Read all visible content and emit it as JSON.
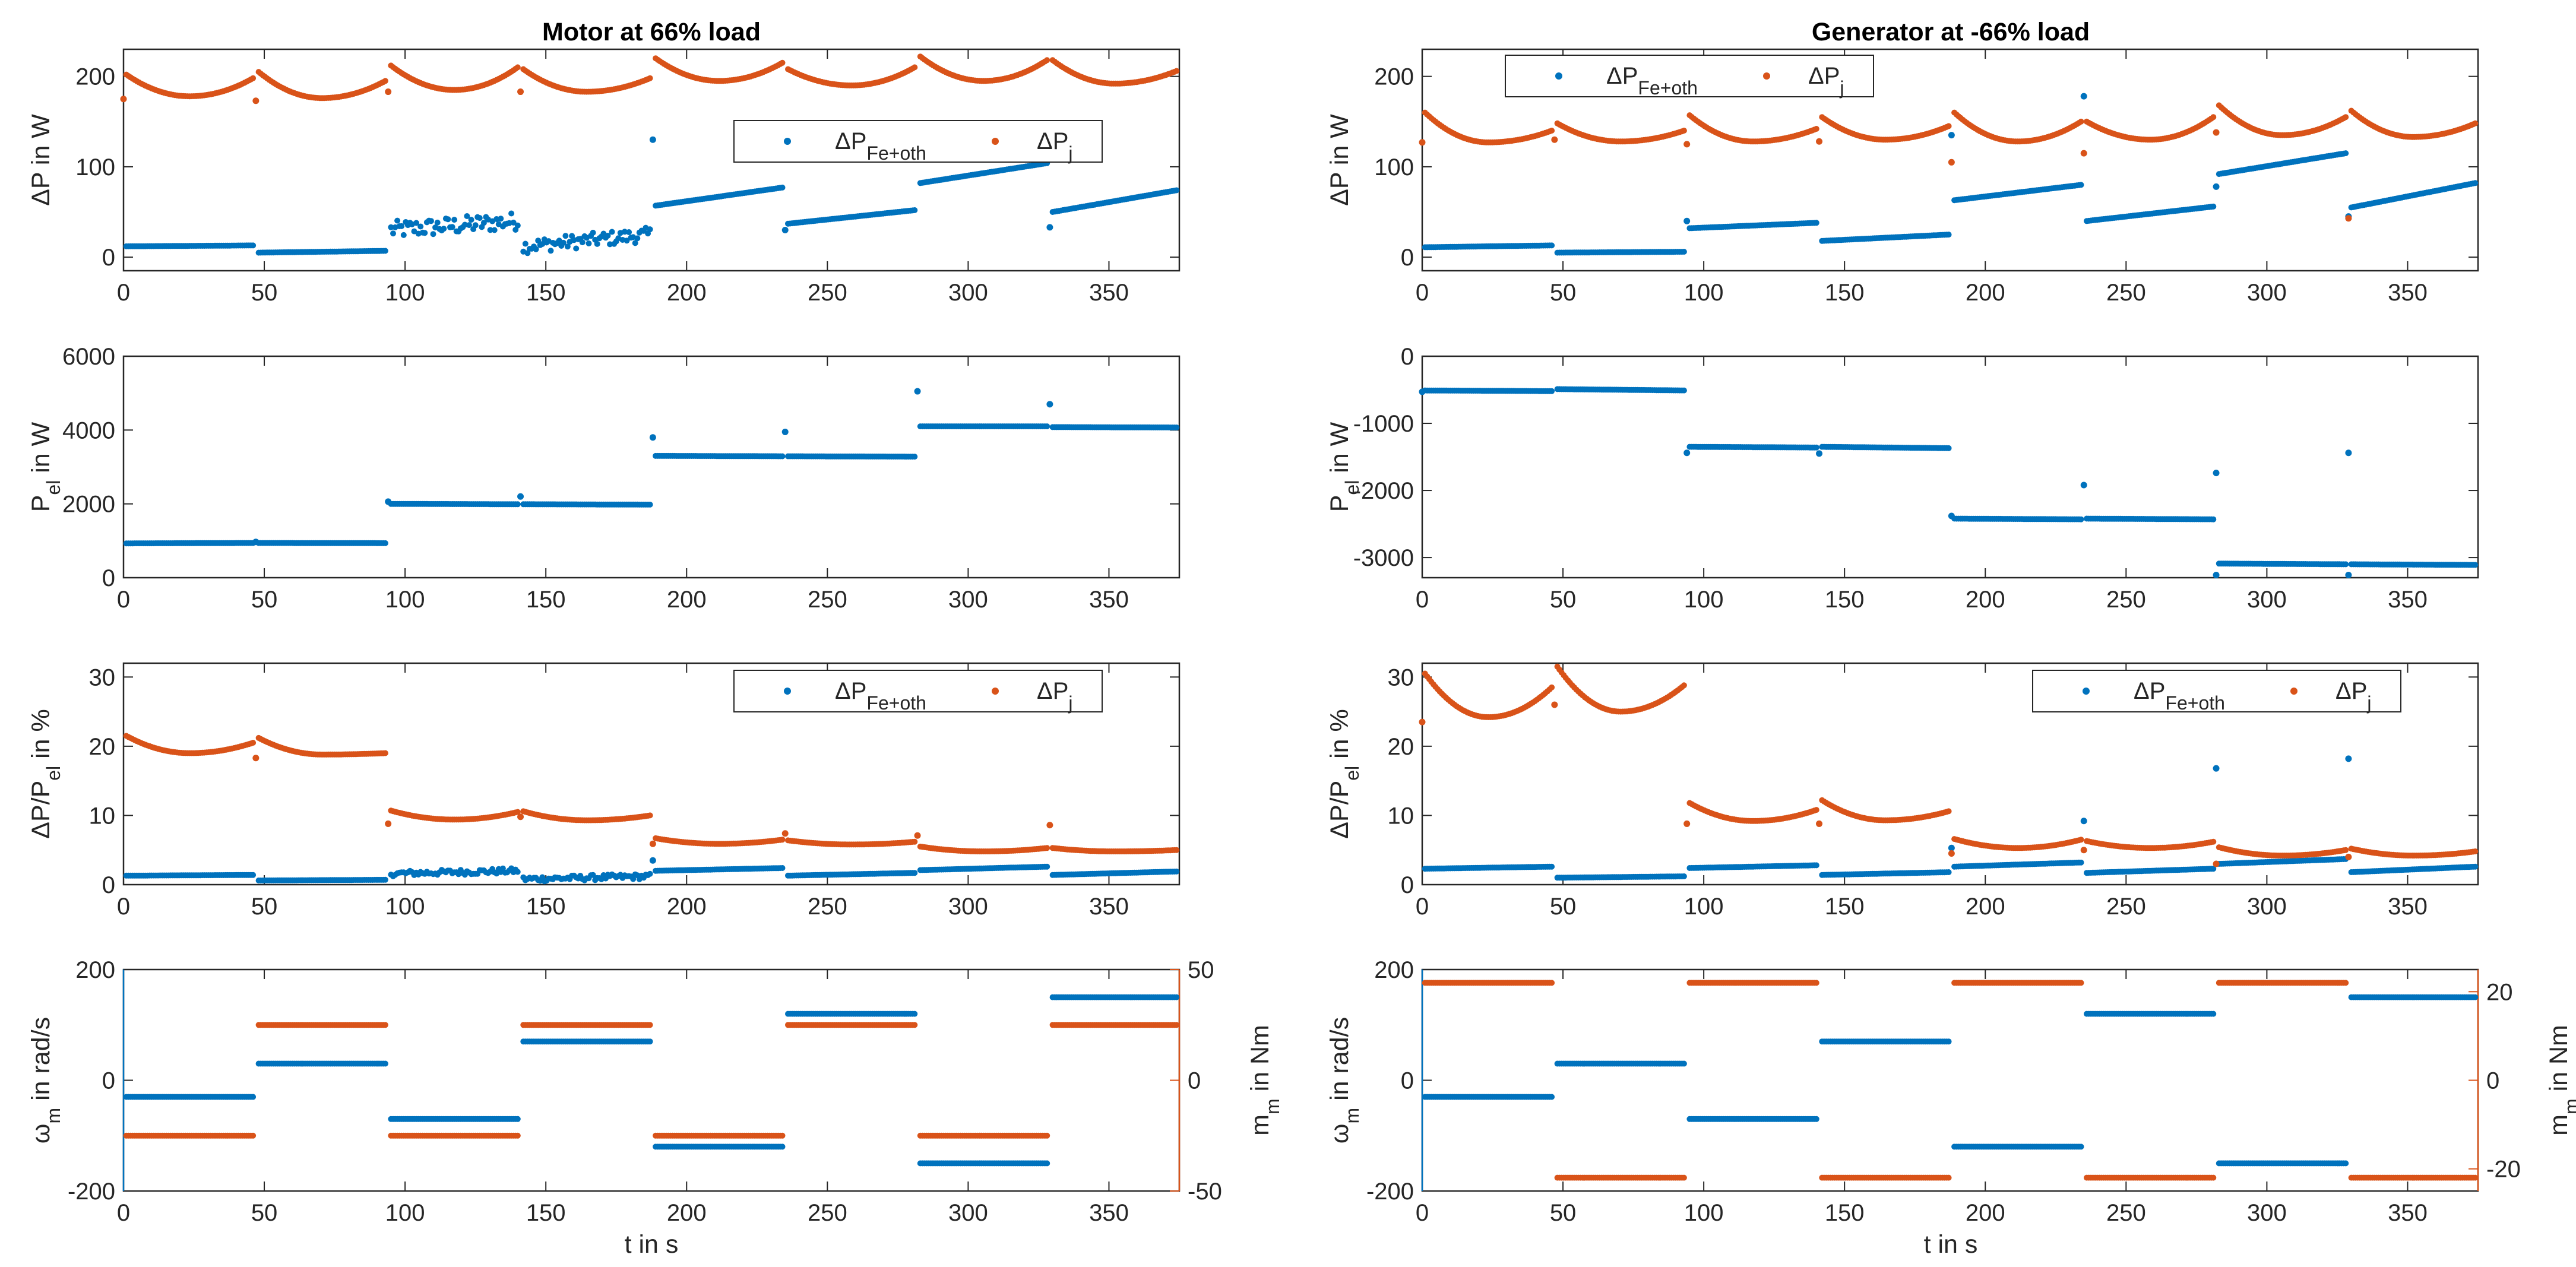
{
  "colors": {
    "blue": "#0072BD",
    "orange": "#D95319",
    "axis": "#262626"
  },
  "columns": [
    {
      "title": "Motor at 66% load",
      "load": "motor",
      "xlabel": "t in s"
    },
    {
      "title": "Generator at -66% load",
      "load": "generator",
      "xlabel": "t in s"
    }
  ],
  "symbols": {
    "delta": "Δ",
    "omega": "ω",
    "sub_m": "m",
    "sub_el": "el",
    "sub_j": "j",
    "sub_fe": "Fe+oth"
  },
  "chart_data": [
    {
      "id": "motor-losses",
      "type": "scatter",
      "title": "Motor at 66% load",
      "xlabel": "",
      "ylabel": "ΔP in W",
      "xlim": [
        0,
        375
      ],
      "ylim": [
        -15,
        230
      ],
      "yticks": [
        0,
        100,
        200
      ],
      "xticks": [
        0,
        50,
        100,
        150,
        200,
        250,
        300,
        350
      ],
      "legend": {
        "placement": "top-right",
        "entries": [
          "ΔP_Fe+oth",
          "ΔP_j"
        ]
      },
      "segment_breaks": [
        0,
        47,
        94,
        141,
        188,
        235,
        282,
        329,
        375
      ],
      "series": [
        {
          "name": "ΔP_Fe+oth",
          "color": "blue",
          "segments": [
            [
              12,
              13
            ],
            [
              5,
              7
            ],
            [
              30,
              40
            ],
            [
              12,
              25
            ],
            [
              57,
              77
            ],
            [
              37,
              52
            ],
            [
              82,
              104
            ],
            [
              50,
              74
            ]
          ],
          "scatter_amp": [
            0,
            0,
            10,
            8,
            0,
            0,
            0,
            0
          ],
          "spikes": [
            [
              188,
              130
            ],
            [
              235,
              30
            ],
            [
              329,
              33
            ]
          ]
        },
        {
          "name": "ΔP_j",
          "color": "orange",
          "segments": [
            [
              202,
              178,
              198
            ],
            [
              205,
              176,
              195
            ],
            [
              212,
              185,
              210
            ],
            [
              208,
              183,
              198
            ],
            [
              220,
              195,
              215
            ],
            [
              208,
              190,
              210
            ],
            [
              222,
              195,
              218
            ],
            [
              218,
              192,
              206
            ]
          ],
          "spikes": [
            [
              0,
              175
            ],
            [
              47,
              173
            ],
            [
              94,
              183
            ],
            [
              141,
              183
            ]
          ]
        }
      ]
    },
    {
      "id": "motor-pel",
      "type": "scatter",
      "xlabel": "",
      "ylabel": "P_el in W",
      "xlim": [
        0,
        375
      ],
      "ylim": [
        0,
        6000
      ],
      "yticks": [
        0,
        2000,
        4000,
        6000
      ],
      "xticks": [
        0,
        50,
        100,
        150,
        200,
        250,
        300,
        350
      ],
      "series": [
        {
          "name": "P_el",
          "color": "blue",
          "segments": [
            [
              930,
              940
            ],
            [
              940,
              935
            ],
            [
              2000,
              1990
            ],
            [
              1990,
              1980
            ],
            [
              3300,
              3290
            ],
            [
              3290,
              3280
            ],
            [
              4100,
              4100
            ],
            [
              4080,
              4070
            ]
          ],
          "spikes": [
            [
              47,
              970
            ],
            [
              94,
              2060
            ],
            [
              141,
              2200
            ],
            [
              188,
              3800
            ],
            [
              235,
              3950
            ],
            [
              282,
              5050
            ],
            [
              329,
              4700
            ]
          ]
        }
      ]
    },
    {
      "id": "motor-ratio",
      "type": "scatter",
      "xlabel": "",
      "ylabel": "ΔP/P_el in %",
      "xlim": [
        0,
        375
      ],
      "ylim": [
        0,
        32
      ],
      "yticks": [
        0,
        10,
        20,
        30
      ],
      "xticks": [
        0,
        50,
        100,
        150,
        200,
        250,
        300,
        350
      ],
      "legend": {
        "placement": "top-right",
        "entries": [
          "ΔP_Fe+oth",
          "ΔP_j"
        ]
      },
      "series": [
        {
          "name": "ΔP_Fe+oth",
          "color": "blue",
          "segments": [
            [
              1.3,
              1.4
            ],
            [
              0.6,
              0.7
            ],
            [
              1.6,
              2.0
            ],
            [
              0.8,
              1.2
            ],
            [
              2.0,
              2.4
            ],
            [
              1.3,
              1.7
            ],
            [
              2.1,
              2.6
            ],
            [
              1.4,
              1.9
            ]
          ],
          "scatter_amp": [
            0,
            0,
            0.4,
            0.4,
            0,
            0,
            0,
            0
          ],
          "spikes": [
            [
              188,
              3.5
            ]
          ]
        },
        {
          "name": "ΔP_j",
          "color": "orange",
          "segments": [
            [
              21.5,
              19.0,
              20.5
            ],
            [
              21.2,
              18.8,
              19.0
            ],
            [
              10.7,
              9.4,
              10.5
            ],
            [
              10.6,
              9.3,
              10.0
            ],
            [
              6.7,
              5.9,
              6.5
            ],
            [
              6.4,
              5.8,
              6.2
            ],
            [
              5.5,
              4.8,
              5.3
            ],
            [
              5.3,
              4.8,
              5.0
            ]
          ],
          "spikes": [
            [
              47,
              18.3
            ],
            [
              94,
              8.8
            ],
            [
              141,
              9.8
            ],
            [
              188,
              5.9
            ],
            [
              235,
              7.4
            ],
            [
              282,
              7.1
            ],
            [
              329,
              8.6
            ]
          ]
        }
      ]
    },
    {
      "id": "motor-speed-torque",
      "type": "scatter",
      "xlabel": "t in s",
      "ylabel": "ω_m in rad/s",
      "ylabel_right": "m_m in Nm",
      "xlim": [
        0,
        375
      ],
      "ylim": [
        -200,
        200
      ],
      "yticks": [
        -200,
        0,
        200
      ],
      "ylim_right": [
        -50,
        50
      ],
      "yticks_right": [
        -50,
        0,
        50
      ],
      "xticks": [
        0,
        50,
        100,
        150,
        200,
        250,
        300,
        350
      ],
      "series": [
        {
          "name": "ω_m",
          "color": "blue",
          "axis": "left",
          "values": [
            -30,
            30,
            -70,
            70,
            -120,
            120,
            -150,
            150
          ]
        },
        {
          "name": "m_m",
          "color": "orange",
          "axis": "right",
          "values": [
            -25,
            25,
            -25,
            25,
            -25,
            25,
            -25,
            25
          ]
        }
      ]
    },
    {
      "id": "generator-losses",
      "type": "scatter",
      "title": "Generator at -66% load",
      "xlabel": "",
      "ylabel": "ΔP in W",
      "xlim": [
        0,
        375
      ],
      "ylim": [
        -15,
        230
      ],
      "yticks": [
        0,
        100,
        200
      ],
      "xticks": [
        0,
        50,
        100,
        150,
        200,
        250,
        300,
        350
      ],
      "legend": {
        "placement": "top-left",
        "entries": [
          "ΔP_Fe+oth",
          "ΔP_j"
        ]
      },
      "series": [
        {
          "name": "ΔP_Fe+oth",
          "color": "blue",
          "segments": [
            [
              11,
              13
            ],
            [
              5,
              6
            ],
            [
              32,
              38
            ],
            [
              18,
              25
            ],
            [
              63,
              80
            ],
            [
              40,
              56
            ],
            [
              92,
              115
            ],
            [
              55,
              82
            ]
          ],
          "spikes": [
            [
              94,
              40
            ],
            [
              188,
              135
            ],
            [
              235,
              178
            ],
            [
              282,
              78
            ],
            [
              329,
              45
            ]
          ]
        },
        {
          "name": "ΔP_j",
          "color": "orange",
          "segments": [
            [
              160,
              127,
              140
            ],
            [
              148,
              128,
              140
            ],
            [
              157,
              128,
              142
            ],
            [
              155,
              130,
              145
            ],
            [
              160,
              128,
              150
            ],
            [
              150,
              130,
              155
            ],
            [
              168,
              135,
              155
            ],
            [
              162,
              133,
              148
            ]
          ],
          "spikes": [
            [
              0,
              127
            ],
            [
              47,
              130
            ],
            [
              94,
              125
            ],
            [
              141,
              128
            ],
            [
              188,
              105
            ],
            [
              235,
              115
            ],
            [
              282,
              138
            ],
            [
              329,
              43
            ]
          ]
        }
      ]
    },
    {
      "id": "generator-pel",
      "type": "scatter",
      "xlabel": "",
      "ylabel": "P_el in W",
      "xlim": [
        0,
        375
      ],
      "ylim": [
        -3300,
        0
      ],
      "yticks": [
        -3000,
        -2000,
        -1000,
        0
      ],
      "xticks": [
        0,
        50,
        100,
        150,
        200,
        250,
        300,
        350
      ],
      "series": [
        {
          "name": "P_el",
          "color": "blue",
          "segments": [
            [
              -510,
              -520
            ],
            [
              -490,
              -510
            ],
            [
              -1350,
              -1360
            ],
            [
              -1350,
              -1370
            ],
            [
              -2420,
              -2430
            ],
            [
              -2420,
              -2430
            ],
            [
              -3090,
              -3100
            ],
            [
              -3100,
              -3110
            ]
          ],
          "spikes": [
            [
              0,
              -530
            ],
            [
              94,
              -1440
            ],
            [
              141,
              -1450
            ],
            [
              188,
              -2380
            ],
            [
              235,
              -1920
            ],
            [
              282,
              -1740
            ],
            [
              282,
              -3260
            ],
            [
              329,
              -1440
            ],
            [
              329,
              -3260
            ]
          ]
        }
      ]
    },
    {
      "id": "generator-ratio",
      "type": "scatter",
      "xlabel": "",
      "ylabel": "ΔP/P_el in %",
      "xlim": [
        0,
        375
      ],
      "ylim": [
        0,
        32
      ],
      "yticks": [
        0,
        10,
        20,
        30
      ],
      "xticks": [
        0,
        50,
        100,
        150,
        200,
        250,
        300,
        350
      ],
      "legend": {
        "placement": "top-right",
        "entries": [
          "ΔP_Fe+oth",
          "ΔP_j"
        ]
      },
      "series": [
        {
          "name": "ΔP_Fe+oth",
          "color": "blue",
          "segments": [
            [
              2.3,
              2.6
            ],
            [
              1.0,
              1.2
            ],
            [
              2.4,
              2.8
            ],
            [
              1.4,
              1.8
            ],
            [
              2.6,
              3.2
            ],
            [
              1.7,
              2.3
            ],
            [
              3.0,
              3.7
            ],
            [
              1.8,
              2.6
            ]
          ],
          "spikes": [
            [
              188,
              5.3
            ],
            [
              235,
              9.2
            ],
            [
              282,
              16.8
            ],
            [
              329,
              18.2
            ]
          ]
        },
        {
          "name": "ΔP_j",
          "color": "orange",
          "segments": [
            [
              30.5,
              24.2,
              28.5
            ],
            [
              31.5,
              25.0,
              28.8
            ],
            [
              11.8,
              9.2,
              10.8
            ],
            [
              12.2,
              9.3,
              10.6
            ],
            [
              6.6,
              5.3,
              6.5
            ],
            [
              6.3,
              5.3,
              6.2
            ],
            [
              5.4,
              4.2,
              5.0
            ],
            [
              5.2,
              4.2,
              4.8
            ]
          ],
          "spikes": [
            [
              0,
              23.5
            ],
            [
              47,
              26.0
            ],
            [
              94,
              8.8
            ],
            [
              141,
              8.8
            ],
            [
              188,
              4.5
            ],
            [
              235,
              5.0
            ],
            [
              282,
              3.0
            ],
            [
              329,
              4.0
            ]
          ]
        }
      ]
    },
    {
      "id": "generator-speed-torque",
      "type": "scatter",
      "xlabel": "t in s",
      "ylabel": "ω_m in rad/s",
      "ylabel_right": "m_m in Nm",
      "xlim": [
        0,
        375
      ],
      "ylim": [
        -200,
        200
      ],
      "yticks": [
        -200,
        0,
        200
      ],
      "ylim_right": [
        -25,
        25
      ],
      "yticks_right": [
        -20,
        0,
        20
      ],
      "xticks": [
        0,
        50,
        100,
        150,
        200,
        250,
        300,
        350
      ],
      "series": [
        {
          "name": "ω_m",
          "color": "blue",
          "axis": "left",
          "values": [
            -30,
            30,
            -70,
            70,
            -120,
            120,
            -150,
            150
          ]
        },
        {
          "name": "m_m",
          "color": "orange",
          "axis": "right",
          "values": [
            22,
            -22,
            22,
            -22,
            22,
            -22,
            22,
            -22
          ]
        }
      ]
    }
  ]
}
